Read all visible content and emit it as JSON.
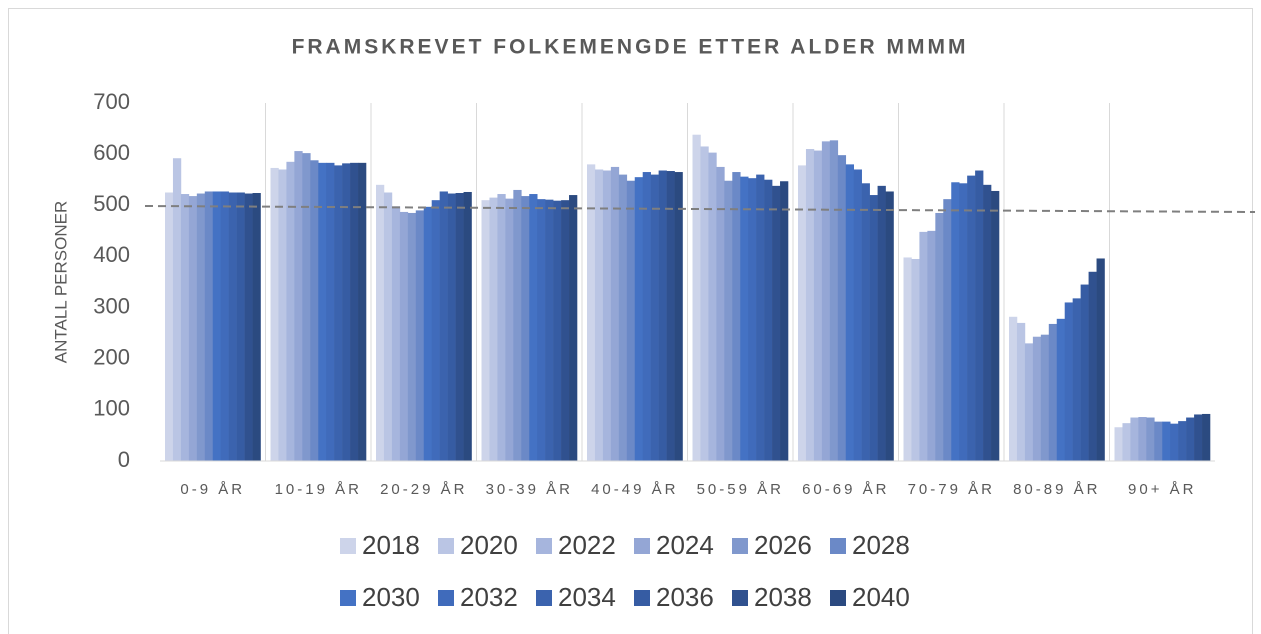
{
  "chart_data": {
    "type": "bar",
    "title": "FRAMSKREVET FOLKEMENGDE ETTER ALDER MMMM",
    "y_label": "ANTALL PERSONER",
    "categories": [
      "0-9 ÅR",
      "10-19 ÅR",
      "20-29 ÅR",
      "30-39 ÅR",
      "40-49 ÅR",
      "50-59 ÅR",
      "60-69 ÅR",
      "70-79 ÅR",
      "80-89 ÅR",
      "90+ ÅR"
    ],
    "ylim": [
      0,
      700
    ],
    "yticks": [
      0,
      100,
      200,
      300,
      400,
      500,
      600,
      700
    ],
    "grid": false,
    "legend": "bottom",
    "series": [
      {
        "name": "2018",
        "color": "#cdd4ea",
        "values": [
          525,
          573,
          540,
          510,
          580,
          638,
          578,
          398,
          282,
          66
        ]
      },
      {
        "name": "2020",
        "color": "#bac5e4",
        "values": [
          592,
          570,
          525,
          515,
          570,
          615,
          610,
          395,
          270,
          74
        ]
      },
      {
        "name": "2022",
        "color": "#a6b5dd",
        "values": [
          522,
          585,
          498,
          522,
          568,
          603,
          607,
          448,
          230,
          85
        ]
      },
      {
        "name": "2024",
        "color": "#94a6d5",
        "values": [
          518,
          606,
          487,
          513,
          575,
          575,
          625,
          450,
          243,
          86
        ]
      },
      {
        "name": "2026",
        "color": "#8098cd",
        "values": [
          523,
          602,
          485,
          530,
          560,
          548,
          627,
          485,
          247,
          85
        ]
      },
      {
        "name": "2028",
        "color": "#6b89c7",
        "values": [
          527,
          588,
          490,
          518,
          548,
          565,
          598,
          512,
          268,
          77
        ]
      },
      {
        "name": "2030",
        "color": "#4472c4",
        "values": [
          527,
          583,
          497,
          522,
          555,
          556,
          580,
          545,
          278,
          77
        ]
      },
      {
        "name": "2032",
        "color": "#406bbb",
        "values": [
          527,
          583,
          510,
          512,
          565,
          553,
          570,
          543,
          310,
          73
        ]
      },
      {
        "name": "2034",
        "color": "#3b63ae",
        "values": [
          525,
          578,
          527,
          511,
          560,
          560,
          543,
          558,
          318,
          78
        ]
      },
      {
        "name": "2036",
        "color": "#365ca3",
        "values": [
          525,
          582,
          523,
          509,
          568,
          550,
          520,
          568,
          345,
          85
        ]
      },
      {
        "name": "2038",
        "color": "#30518f",
        "values": [
          523,
          583,
          524,
          510,
          567,
          538,
          538,
          540,
          370,
          91
        ]
      },
      {
        "name": "2040",
        "color": "#2b4a80",
        "values": [
          524,
          583,
          526,
          520,
          565,
          547,
          527,
          528,
          396,
          92
        ]
      }
    ]
  }
}
